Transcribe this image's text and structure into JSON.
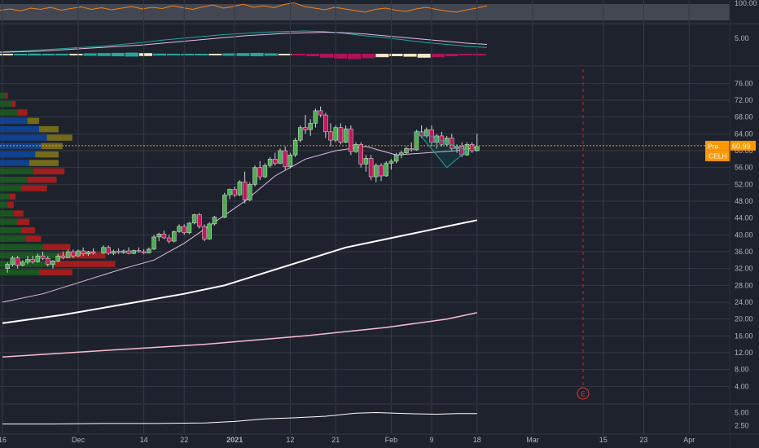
{
  "chart_data": [
    {
      "pane": "rsi",
      "type": "line",
      "yticks": [
        100.0
      ],
      "band": [
        30,
        70
      ],
      "values": [
        55,
        58,
        53,
        60,
        57,
        62,
        55,
        59,
        63,
        57,
        61,
        56,
        60,
        64,
        58,
        62,
        59,
        66,
        61,
        57,
        63,
        68,
        60,
        64,
        70,
        62,
        66,
        61,
        69,
        73,
        64,
        60,
        56,
        62,
        58,
        54,
        50,
        57,
        60,
        55,
        52,
        58,
        62,
        57,
        53,
        50,
        56,
        60,
        66
      ],
      "colors": {
        "line": "#f57f17",
        "band": "#4a4e58"
      }
    },
    {
      "pane": "macd",
      "type": "line",
      "yticks": [
        5.0
      ],
      "macd_values": [
        0.6,
        0.7,
        0.9,
        1.1,
        1.3,
        1.5,
        1.8,
        2.1,
        2.5,
        2.8,
        3.1,
        3.4,
        3.6,
        3.8,
        3.9,
        4.0,
        3.9,
        3.6,
        3.2,
        2.9,
        2.5,
        2.1,
        1.8,
        1.5,
        1.3
      ],
      "signal_values": [
        0.5,
        0.6,
        0.7,
        0.9,
        1.1,
        1.3,
        1.5,
        1.7,
        2.0,
        2.3,
        2.6,
        2.9,
        3.2,
        3.4,
        3.6,
        3.7,
        3.8,
        3.7,
        3.5,
        3.2,
        2.9,
        2.6,
        2.3,
        2.0,
        1.8
      ],
      "histogram": [
        0.2,
        0.3,
        0.4,
        0.3,
        0.2,
        0.3,
        0.5,
        0.6,
        0.7,
        0.8,
        0.6,
        0.4,
        0.3,
        0.2,
        0.1,
        0.3,
        0.5,
        0.6,
        0.7,
        0.5,
        0.3,
        -0.2,
        -0.5,
        -0.8,
        -1.0,
        -1.1,
        -0.9,
        -0.7,
        -0.5,
        -0.6,
        -0.8,
        -0.7,
        -0.5,
        -0.3,
        -0.2
      ],
      "colors": {
        "macd": "#26a69a",
        "signal": "#e1bee7",
        "hist_pos": "#26a69a",
        "hist_neg": "#ad1457",
        "hist_pale": "#f5e6c8"
      }
    },
    {
      "pane": "price",
      "type": "candlestick",
      "symbol": "CELH",
      "price_label": "60.99",
      "pre_label": "Pre",
      "last_price": 60.99,
      "ylim": [
        0,
        78
      ],
      "yticks": [
        "76.00",
        "72.00",
        "68.00",
        "64.00",
        "60.00",
        "56.00",
        "52.00",
        "48.00",
        "44.00",
        "40.00",
        "36.00",
        "32.00",
        "28.00",
        "24.00",
        "20.00",
        "16.00",
        "12.00",
        "8.00",
        "4.00"
      ],
      "ytick_values": [
        76,
        72,
        68,
        64,
        60,
        56,
        52,
        48,
        44,
        40,
        36,
        32,
        28,
        24,
        20,
        16,
        12,
        8,
        4
      ],
      "xticks": [
        {
          "label": "16",
          "day": 0
        },
        {
          "label": "Dec",
          "day": 15
        },
        {
          "label": "14",
          "day": 28
        },
        {
          "label": "22",
          "day": 36
        },
        {
          "label": "2021",
          "day": 46
        },
        {
          "label": "12",
          "day": 57
        },
        {
          "label": "21",
          "day": 66
        },
        {
          "label": "Feb",
          "day": 77
        },
        {
          "label": "9",
          "day": 85
        },
        {
          "label": "18",
          "day": 94
        },
        {
          "label": "Mar",
          "day": 105
        },
        {
          "label": "15",
          "day": 119
        },
        {
          "label": "23",
          "day": 127
        },
        {
          "label": "Apr",
          "day": 136
        }
      ],
      "xlim": [
        0,
        140
      ],
      "candles": [
        [
          1,
          32,
          33.5,
          31,
          33
        ],
        [
          2,
          33,
          35,
          32.5,
          34.5
        ],
        [
          3,
          34.5,
          35,
          32,
          32.8
        ],
        [
          4,
          32.8,
          34,
          32.5,
          33.5
        ],
        [
          5,
          33.5,
          35,
          33,
          34.2
        ],
        [
          6,
          34.2,
          35,
          33.2,
          33.6
        ],
        [
          7,
          33.6,
          35.5,
          33.4,
          35
        ],
        [
          8,
          35,
          36,
          34,
          34.4
        ],
        [
          9,
          34.4,
          35,
          32.5,
          33
        ],
        [
          10,
          33,
          34,
          32,
          33.8
        ],
        [
          11,
          33.8,
          35.5,
          33.5,
          35
        ],
        [
          12,
          35,
          36,
          34.2,
          34.6
        ],
        [
          13,
          34.6,
          36.5,
          34.5,
          36
        ],
        [
          14,
          36,
          36.5,
          34.5,
          35
        ],
        [
          15,
          35,
          36.5,
          34.8,
          36.2
        ],
        [
          16,
          36.2,
          37,
          35,
          35.5
        ],
        [
          17,
          35.5,
          36.2,
          35,
          36
        ],
        [
          18,
          36,
          36.8,
          35.3,
          35.7
        ],
        [
          20,
          35.7,
          37.5,
          35.5,
          37
        ],
        [
          21,
          37,
          37.5,
          35.2,
          35.6
        ],
        [
          22,
          35.6,
          36.5,
          35.2,
          36.1
        ],
        [
          23,
          36.1,
          36.8,
          35.5,
          35.8
        ],
        [
          24,
          35.8,
          36.5,
          35.5,
          36.2
        ],
        [
          25,
          36.2,
          37,
          35.4,
          35.6
        ],
        [
          26,
          35.6,
          36.5,
          35.4,
          36.3
        ],
        [
          27,
          36.3,
          37,
          35.8,
          36
        ],
        [
          28,
          36,
          36.6,
          35.5,
          35.7
        ],
        [
          29,
          35.7,
          37,
          35.6,
          36.6
        ],
        [
          30,
          36.6,
          40,
          36.4,
          39.5
        ],
        [
          31,
          39.5,
          40.5,
          38.5,
          40.2
        ],
        [
          32,
          40.2,
          41,
          39,
          39.3
        ],
        [
          33,
          39.3,
          40,
          38,
          38.5
        ],
        [
          34,
          38.5,
          41,
          38.2,
          40.8
        ],
        [
          35,
          40.8,
          42.5,
          40.5,
          42
        ],
        [
          36,
          42,
          42.5,
          40,
          40.5
        ],
        [
          37,
          40.5,
          43,
          40.2,
          42.8
        ],
        [
          38,
          42.8,
          45,
          42.5,
          44.8
        ],
        [
          39,
          44.8,
          45.2,
          41.5,
          42
        ],
        [
          40,
          42,
          42.5,
          38.5,
          39
        ],
        [
          41,
          39,
          43,
          38.8,
          42.6
        ],
        [
          42,
          42.6,
          44.5,
          42.2,
          44.2
        ],
        [
          44,
          44.2,
          50,
          44,
          49.5
        ],
        [
          45,
          49.5,
          51,
          48.5,
          50.8
        ],
        [
          46,
          50.8,
          51.5,
          49,
          49.5
        ],
        [
          47,
          49.5,
          53,
          49.2,
          52.6
        ],
        [
          48,
          52.6,
          55,
          47.5,
          48.3
        ],
        [
          49,
          48.3,
          52.5,
          48,
          52
        ],
        [
          50,
          52,
          56.5,
          51.5,
          56
        ],
        [
          51,
          56,
          57.5,
          53,
          53.8
        ],
        [
          52,
          53.8,
          57,
          53.5,
          56.5
        ],
        [
          53,
          56.5,
          58.5,
          56,
          58
        ],
        [
          54,
          58,
          59.5,
          56.5,
          57
        ],
        [
          55,
          57,
          60.5,
          56.8,
          60
        ],
        [
          56,
          60,
          61,
          55.5,
          56.2
        ],
        [
          57,
          56.2,
          59.5,
          55.8,
          59
        ],
        [
          58,
          59,
          63,
          58.5,
          62.5
        ],
        [
          59,
          62.5,
          66,
          62,
          65.5
        ],
        [
          60,
          65.5,
          68.5,
          64,
          65
        ],
        [
          61,
          65,
          67.5,
          63.5,
          66.5
        ],
        [
          62,
          66.5,
          70,
          65.5,
          69.5
        ],
        [
          63,
          69.5,
          70.5,
          68,
          68.5
        ],
        [
          64,
          68.5,
          69,
          63,
          64.5
        ],
        [
          65,
          64.5,
          66.5,
          61,
          62.5
        ],
        [
          66,
          62.5,
          66,
          62,
          65.5
        ],
        [
          67,
          65.5,
          66.5,
          61.5,
          62
        ],
        [
          68,
          62,
          66,
          61.8,
          65.2
        ],
        [
          69,
          65.2,
          66,
          59,
          59.8
        ],
        [
          70,
          59.8,
          62,
          59.5,
          61.5
        ],
        [
          71,
          61.5,
          62,
          56,
          56.8
        ],
        [
          72,
          56.8,
          59,
          55,
          58.2
        ],
        [
          73,
          58.2,
          59,
          53,
          53.8
        ],
        [
          74,
          53.8,
          57,
          52.5,
          56.5
        ],
        [
          75,
          56.5,
          57,
          52.8,
          54
        ],
        [
          76,
          54,
          57.5,
          53.8,
          57
        ],
        [
          77,
          57,
          58,
          55.5,
          57.5
        ],
        [
          78,
          57.5,
          59.5,
          57,
          59
        ],
        [
          79,
          59,
          60,
          58.2,
          59.5
        ],
        [
          80,
          59.5,
          61,
          59.3,
          60.5
        ],
        [
          81,
          60.5,
          62,
          59.8,
          60.2
        ],
        [
          82,
          60.2,
          65,
          60,
          64.5
        ],
        [
          83,
          64.5,
          66,
          63,
          63.5
        ],
        [
          84,
          63.5,
          65.5,
          63,
          65
        ],
        [
          85,
          65,
          66,
          61,
          62
        ],
        [
          86,
          62,
          64,
          60.5,
          63.5
        ],
        [
          87,
          63.5,
          64.5,
          61,
          61.5
        ],
        [
          88,
          61.5,
          63.5,
          61,
          63
        ],
        [
          89,
          63,
          64,
          60,
          60.5
        ],
        [
          90,
          60.5,
          61.5,
          59.5,
          61
        ],
        [
          91,
          61,
          62,
          58.5,
          59
        ],
        [
          92,
          59,
          62,
          58.8,
          61.5
        ],
        [
          93,
          61.5,
          62,
          59.5,
          60
        ],
        [
          94,
          60,
          64,
          59.8,
          60.99
        ]
      ],
      "sma20": [
        [
          0,
          24
        ],
        [
          8,
          26
        ],
        [
          16,
          29
        ],
        [
          24,
          32
        ],
        [
          30,
          34
        ],
        [
          36,
          38
        ],
        [
          42,
          43
        ],
        [
          48,
          48
        ],
        [
          54,
          54
        ],
        [
          60,
          58
        ],
        [
          66,
          60
        ],
        [
          72,
          61
        ],
        [
          78,
          59
        ],
        [
          84,
          59.5
        ],
        [
          90,
          60
        ],
        [
          94,
          60.8
        ]
      ],
      "sma50": [
        [
          0,
          19
        ],
        [
          12,
          21
        ],
        [
          24,
          23.5
        ],
        [
          36,
          26
        ],
        [
          44,
          28
        ],
        [
          52,
          31
        ],
        [
          60,
          34
        ],
        [
          68,
          37
        ],
        [
          76,
          39
        ],
        [
          84,
          41
        ],
        [
          90,
          42.5
        ],
        [
          94,
          43.5
        ]
      ],
      "sma200": [
        [
          0,
          11
        ],
        [
          20,
          12.5
        ],
        [
          40,
          14
        ],
        [
          60,
          16
        ],
        [
          76,
          18
        ],
        [
          88,
          20
        ],
        [
          94,
          21.5
        ]
      ],
      "volume_profile": [
        {
          "price": 73,
          "up": 6,
          "down": 2
        },
        {
          "price": 71,
          "up": 12,
          "down": 4
        },
        {
          "price": 69,
          "up": 18,
          "down": 10
        },
        {
          "price": 67,
          "up": 28,
          "down": 12
        },
        {
          "price": 65,
          "up": 40,
          "down": 20
        },
        {
          "price": 63,
          "up": 48,
          "down": 26
        },
        {
          "price": 61,
          "up": 42,
          "down": 22
        },
        {
          "price": 59,
          "up": 36,
          "down": 24
        },
        {
          "price": 57,
          "up": 30,
          "down": 30
        },
        {
          "price": 55,
          "up": 34,
          "down": 32
        },
        {
          "price": 53,
          "up": 28,
          "down": 30
        },
        {
          "price": 51,
          "up": 22,
          "down": 26
        },
        {
          "price": 49,
          "up": 10,
          "down": 6
        },
        {
          "price": 47,
          "up": 8,
          "down": 6
        },
        {
          "price": 45,
          "up": 14,
          "down": 10
        },
        {
          "price": 43,
          "up": 18,
          "down": 12
        },
        {
          "price": 41,
          "up": 22,
          "down": 14
        },
        {
          "price": 39,
          "up": 26,
          "down": 16
        },
        {
          "price": 37,
          "up": 44,
          "down": 28
        },
        {
          "price": 35,
          "up": 60,
          "down": 48
        },
        {
          "price": 33,
          "up": 56,
          "down": 62
        },
        {
          "price": 31,
          "up": 40,
          "down": 34
        }
      ],
      "earnings_marker": {
        "day": 115,
        "label": "E"
      },
      "triangle": [
        [
          82,
          64.8
        ],
        [
          92,
          60
        ],
        [
          88,
          56
        ]
      ],
      "colors": {
        "up": "#26a69a",
        "down": "#ef5350",
        "up_fill": "#2e7d32",
        "down_fill": "#e91e63",
        "sma20": "#e1bee7",
        "sma50": "#ffffff",
        "sma200": "#f8bbd0",
        "pre_line": "#ff9800",
        "grid": "#363a45",
        "text": "#b2b5be",
        "vp_up": "#1b5e20",
        "vp_down": "#b71c1c",
        "vp_va_up": "#0d47a1",
        "vp_va_down": "#827717"
      }
    },
    {
      "pane": "indicator",
      "type": "line",
      "yticks": [
        "5.00",
        "2.50"
      ],
      "ytick_values": [
        5,
        2.5
      ],
      "ylim": [
        1,
        6.5
      ],
      "values": [
        [
          0,
          2.8
        ],
        [
          10,
          2.8
        ],
        [
          20,
          2.9
        ],
        [
          30,
          2.9
        ],
        [
          40,
          3.0
        ],
        [
          46,
          3.3
        ],
        [
          52,
          3.8
        ],
        [
          58,
          4.0
        ],
        [
          64,
          4.3
        ],
        [
          70,
          4.9
        ],
        [
          74,
          5.0
        ],
        [
          80,
          4.8
        ],
        [
          86,
          4.7
        ],
        [
          90,
          4.8
        ],
        [
          94,
          4.8
        ]
      ],
      "colors": {
        "line": "#ffffff"
      }
    }
  ]
}
